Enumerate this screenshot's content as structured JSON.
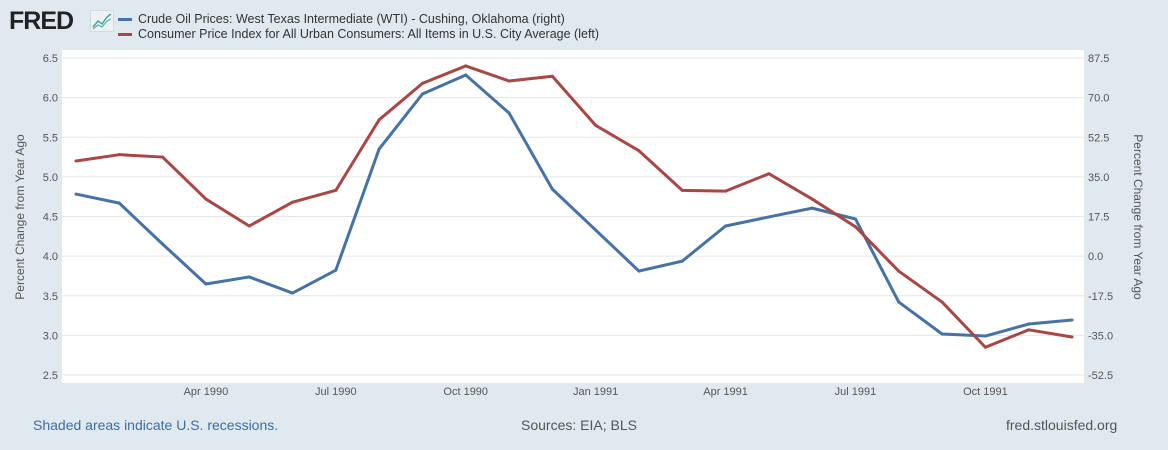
{
  "logo": "FRED",
  "chart_data": {
    "type": "line",
    "x": [
      "Jan 1990",
      "Feb 1990",
      "Mar 1990",
      "Apr 1990",
      "May 1990",
      "Jun 1990",
      "Jul 1990",
      "Aug 1990",
      "Sep 1990",
      "Oct 1990",
      "Nov 1990",
      "Dec 1990",
      "Jan 1991",
      "Feb 1991",
      "Mar 1991",
      "Apr 1991",
      "May 1991",
      "Jun 1991",
      "Jul 1991",
      "Aug 1991",
      "Sep 1991",
      "Oct 1991",
      "Nov 1991",
      "Dec 1991"
    ],
    "x_tick_labels": {
      "3": "Apr 1990",
      "6": "Jul 1990",
      "9": "Oct 1990",
      "12": "Jan 1991",
      "15": "Apr 1991",
      "18": "Jul 1991",
      "21": "Oct 1991"
    },
    "series": [
      {
        "name": "Crude Oil Prices: West Texas Intermediate (WTI) - Cushing, Oklahoma (right)",
        "axis": "right",
        "color": "#4572a7",
        "values": [
          27.4,
          23.4,
          5.3,
          -12.3,
          -9.2,
          -16.3,
          -6.2,
          47.3,
          71.6,
          80.0,
          63.2,
          29.6,
          11.5,
          -6.6,
          -2.2,
          13.3,
          17.3,
          21.2,
          16.4,
          -20.3,
          -34.4,
          -35.3,
          -30.0,
          -28.2
        ]
      },
      {
        "name": "Consumer Price Index for All Urban Consumers: All Items in U.S. City Average (left)",
        "axis": "left",
        "color": "#aa4643",
        "values": [
          5.2,
          5.28,
          5.25,
          4.72,
          4.38,
          4.68,
          4.83,
          5.72,
          6.18,
          6.4,
          6.21,
          6.27,
          5.65,
          5.33,
          4.83,
          4.82,
          5.04,
          4.72,
          4.37,
          3.81,
          3.42,
          2.85,
          3.07,
          2.98
        ]
      }
    ],
    "y_left": {
      "label": "Percent Change from Year Ago",
      "range": [
        2.5,
        6.5
      ],
      "ticks": [
        "2.5",
        "3.0",
        "3.5",
        "4.0",
        "4.5",
        "5.0",
        "5.5",
        "6.0",
        "6.5"
      ]
    },
    "y_right": {
      "label": "Percent Change from Year Ago",
      "range": [
        -52.5,
        87.5
      ],
      "ticks": [
        "-52.5",
        "-35.0",
        "-17.5",
        "0.0",
        "17.5",
        "35.0",
        "52.5",
        "70.0",
        "87.5"
      ]
    },
    "grid": true,
    "legend_placement": "top-left"
  },
  "footer": {
    "recession_note": "Shaded areas indicate U.S. recessions.",
    "sources": "Sources: EIA; BLS",
    "site": "fred.stlouisfed.org"
  }
}
